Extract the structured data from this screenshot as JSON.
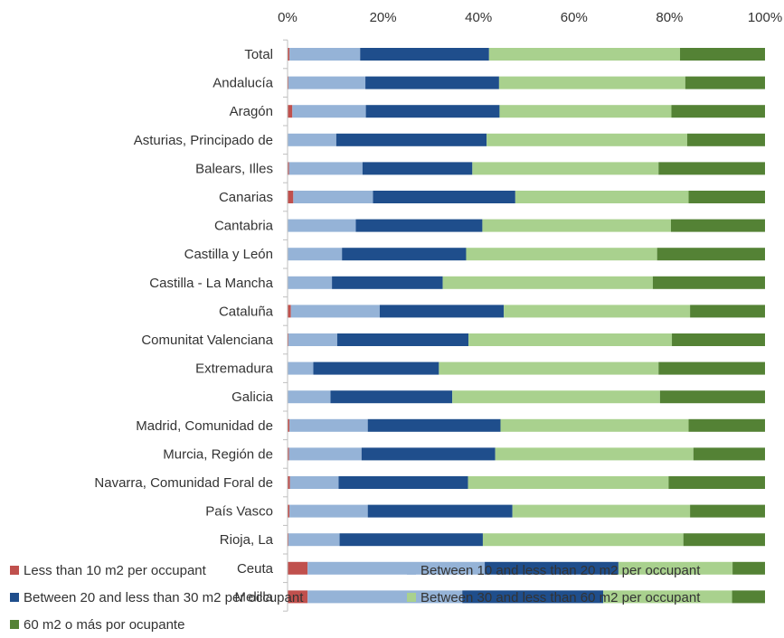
{
  "chart_data": {
    "type": "bar",
    "orientation": "horizontal",
    "stacked": "percent",
    "title": "",
    "xlabel": "",
    "ylabel": "",
    "xlim": [
      0,
      100
    ],
    "x_ticks": [
      "0%",
      "20%",
      "40%",
      "60%",
      "80%",
      "100%"
    ],
    "grid": false,
    "legend_position": "bottom",
    "categories": [
      "Total",
      "Andalucía",
      "Aragón",
      "Asturias, Principado de",
      "Balears, Illes",
      "Canarias",
      "Cantabria",
      "Castilla y León",
      "Castilla - La Mancha",
      "Cataluña",
      "Comunitat Valenciana",
      "Extremadura",
      "Galicia",
      "Madrid, Comunidad de",
      "Murcia, Región de",
      "Navarra, Comunidad Foral de",
      "País Vasco",
      "Rioja, La",
      "Ceuta",
      "Melilla"
    ],
    "series": [
      {
        "name": "Less than 10 m2 per occupant",
        "color": "#c0504d",
        "values": [
          0.4,
          0.2,
          1.0,
          0.1,
          0.3,
          1.2,
          0.1,
          0.1,
          0.1,
          0.7,
          0.2,
          0.1,
          0.1,
          0.4,
          0.3,
          0.5,
          0.4,
          0.2,
          4.2,
          4.2
        ]
      },
      {
        "name": "Between 10 and less than 20 m2 per occupant",
        "color": "#95b3d7",
        "values": [
          14.8,
          16.1,
          15.4,
          10.1,
          15.4,
          16.7,
          14.2,
          11.3,
          9.2,
          18.6,
          10.2,
          5.3,
          8.9,
          16.4,
          15.2,
          10.2,
          16.4,
          10.7,
          37.1,
          32.4
        ]
      },
      {
        "name": "Between 20 and less than 30 m2 per occupant",
        "color": "#1f4e8c",
        "values": [
          27.0,
          28.0,
          28.0,
          31.5,
          23.0,
          29.8,
          26.5,
          26.0,
          23.2,
          26.0,
          27.5,
          26.3,
          25.5,
          27.8,
          28.0,
          27.1,
          30.3,
          30.0,
          28.0,
          29.5
        ]
      },
      {
        "name": "Between 30 and less than 60 m2 per occupant",
        "color": "#a9d18e",
        "values": [
          40.0,
          39.0,
          36.0,
          42.0,
          39.0,
          36.3,
          39.5,
          40.0,
          44.0,
          39.0,
          42.6,
          46.0,
          43.5,
          39.4,
          41.5,
          42.0,
          37.2,
          42.0,
          23.9,
          27.0
        ]
      },
      {
        "name": "60 m2 o más por ocupante",
        "color": "#548235",
        "values": [
          17.8,
          16.7,
          19.6,
          16.3,
          22.3,
          16.0,
          19.7,
          22.6,
          23.5,
          15.7,
          19.5,
          22.3,
          22.0,
          16.0,
          15.0,
          20.2,
          15.7,
          17.1,
          6.8,
          6.9
        ]
      }
    ]
  }
}
